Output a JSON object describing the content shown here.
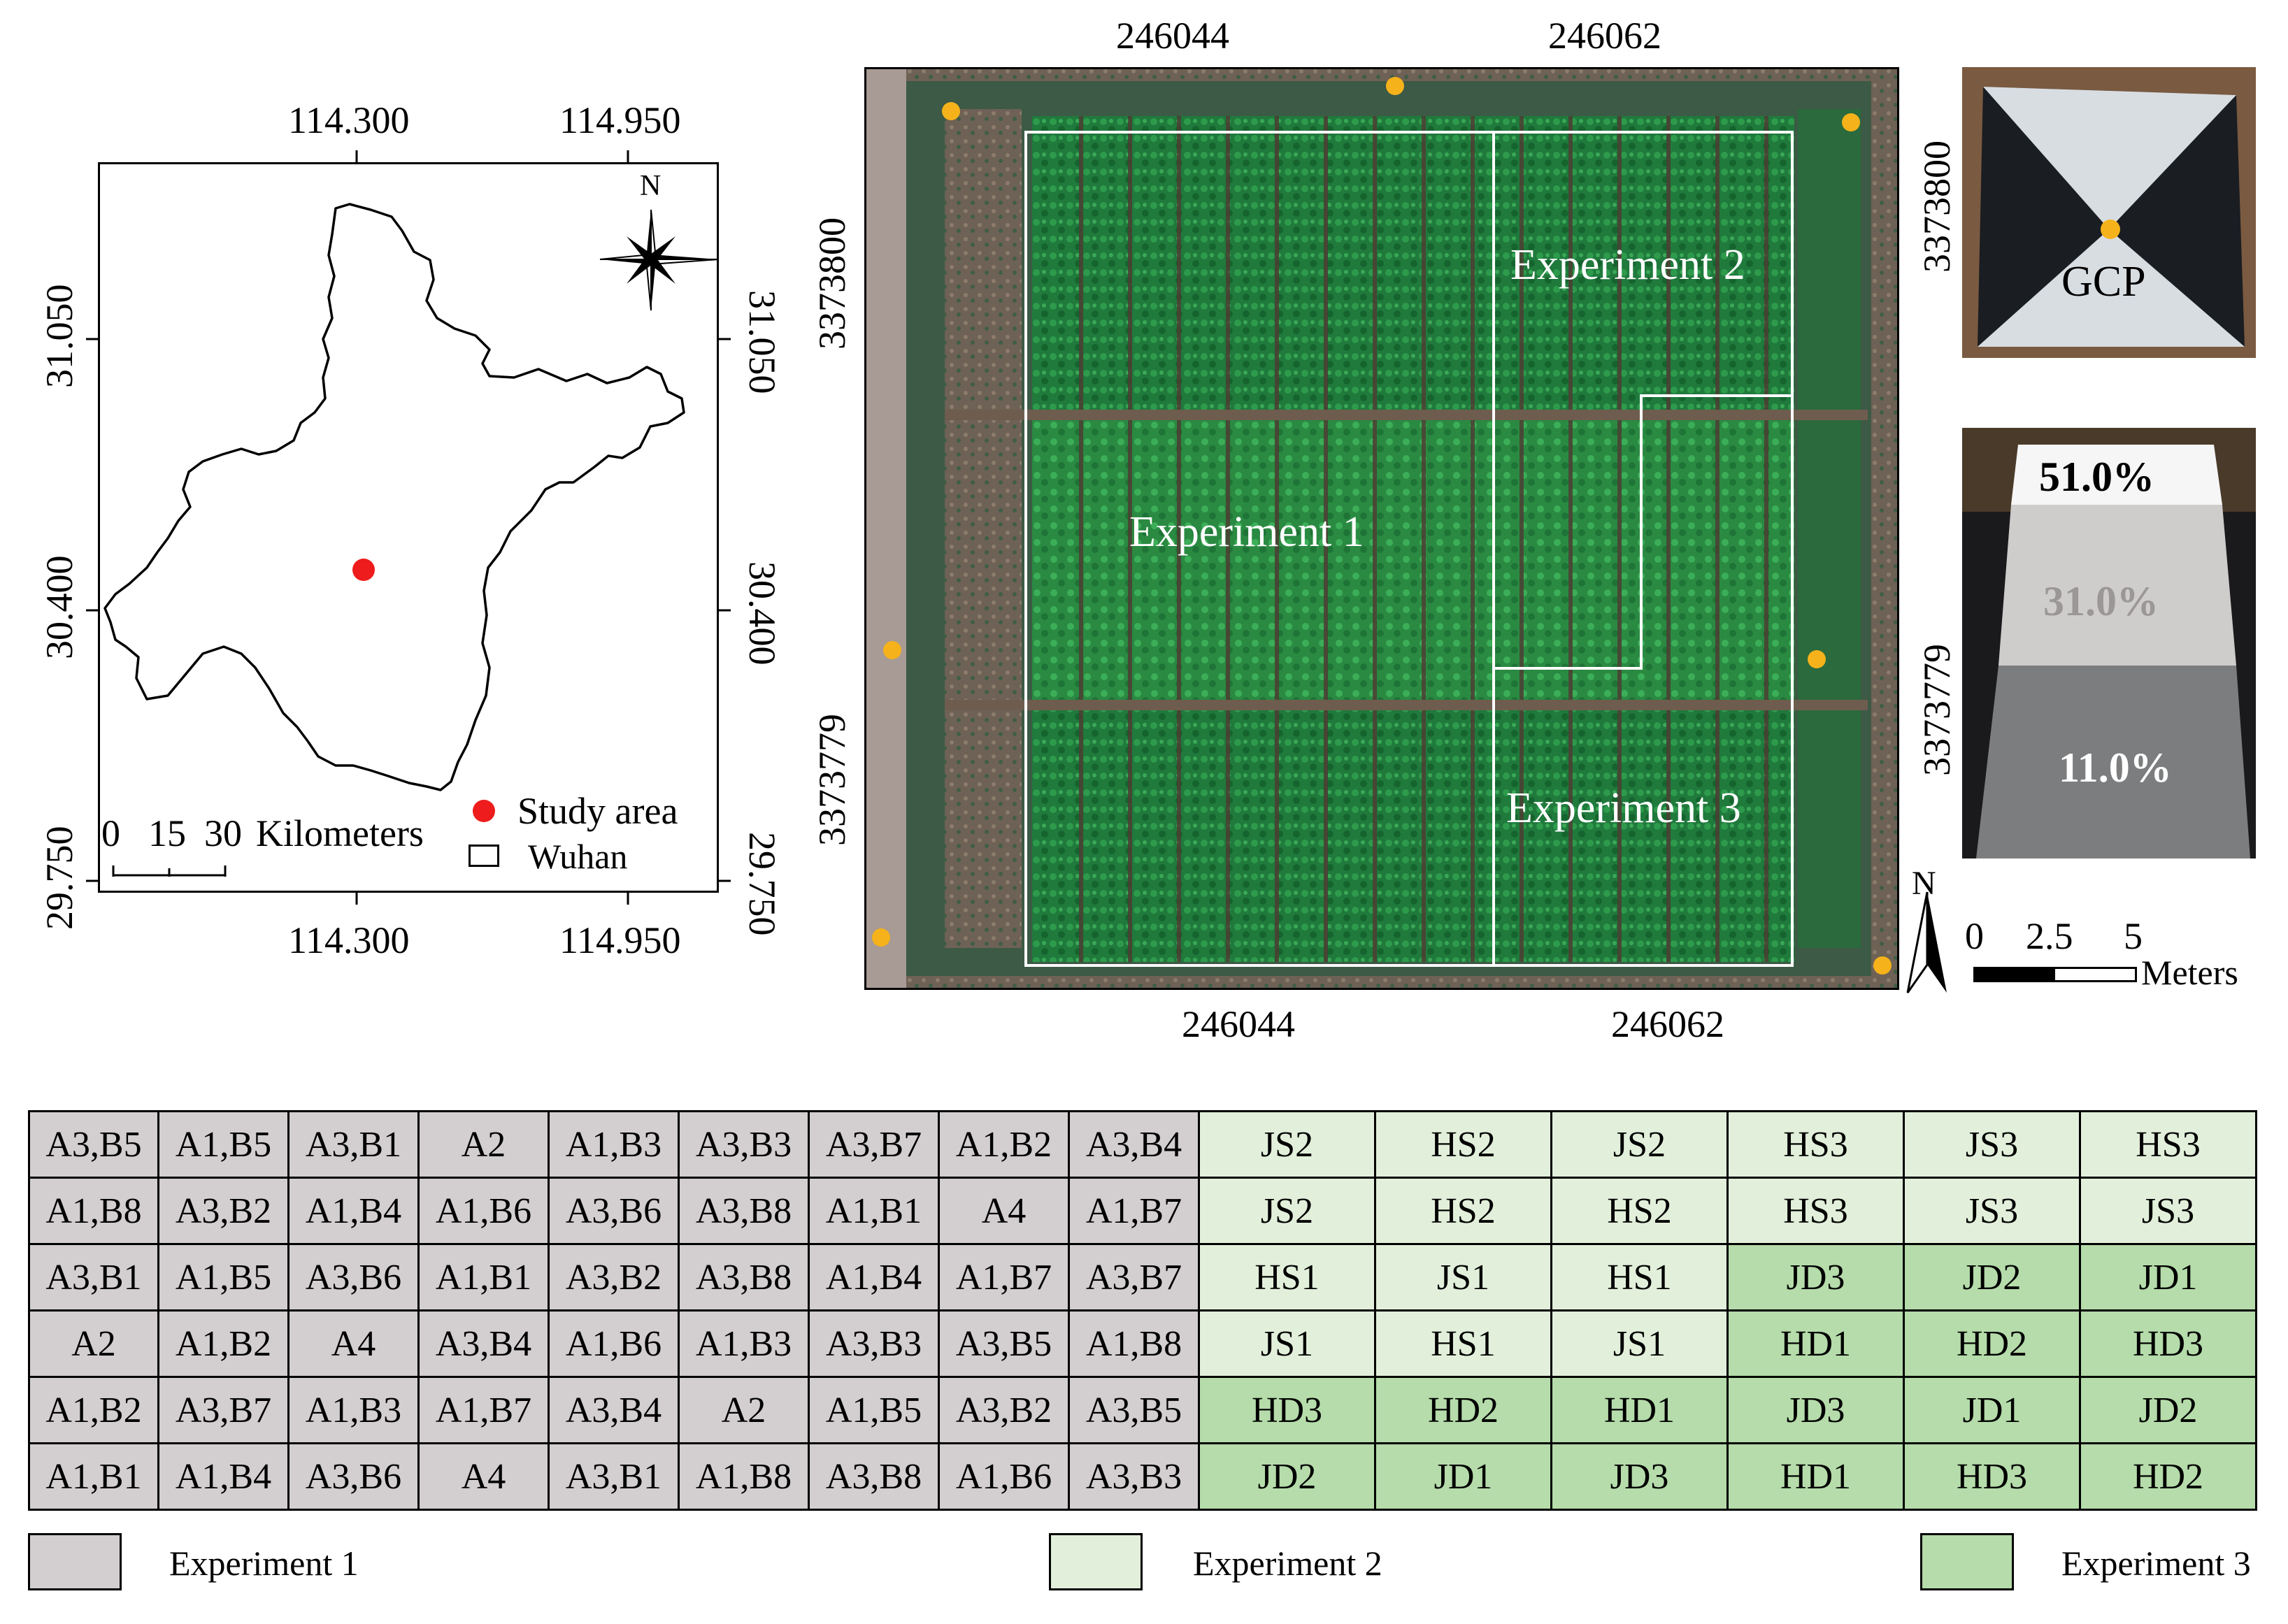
{
  "left_map": {
    "top_ticks": [
      "114.300",
      "114.950"
    ],
    "bottom_ticks": [
      "114.300",
      "114.950"
    ],
    "left_ticks": [
      "31.050",
      "30.400",
      "29.750"
    ],
    "right_ticks": [
      "31.050",
      "30.400",
      "29.750"
    ],
    "north_label": "N",
    "scale_labels": [
      "0",
      "15",
      "30"
    ],
    "scale_unit": "Kilometers",
    "legend": {
      "study_area": "Study area",
      "wuhan": "Wuhan"
    },
    "colors": {
      "study_area": "#ee1c1c"
    }
  },
  "aerial_map": {
    "top_ticks": [
      "246044",
      "246062"
    ],
    "bottom_ticks": [
      "246044",
      "246062"
    ],
    "left_ticks": [
      "3373800",
      "3373779"
    ],
    "right_ticks": [
      "3373800",
      "3373779"
    ],
    "experiments": [
      "Experiment 1",
      "Experiment 2",
      "Experiment 3"
    ],
    "north_label": "N",
    "scale_labels": [
      "0",
      "2.5",
      "5"
    ],
    "scale_unit": "Meters",
    "colors": {
      "gcp_marker": "#f5b21a",
      "vegetation": "#1d7a3a",
      "soil": "#7a6a5a"
    }
  },
  "gcp_panel": {
    "label": "GCP"
  },
  "reflectance_panel": {
    "labels": [
      "51.0%",
      "31.0%",
      "11.0%"
    ]
  },
  "plot_table": {
    "experiment1": [
      [
        "A3,B5",
        "A1,B5",
        "A3,B1",
        "A2",
        "A1,B3",
        "A3,B3",
        "A3,B7",
        "A1,B2",
        "A3,B4"
      ],
      [
        "A1,B8",
        "A3,B2",
        "A1,B4",
        "A1,B6",
        "A3,B6",
        "A3,B8",
        "A1,B1",
        "A4",
        "A1,B7"
      ],
      [
        "A3,B1",
        "A1,B5",
        "A3,B6",
        "A1,B1",
        "A3,B2",
        "A3,B8",
        "A1,B4",
        "A1,B7",
        "A3,B7"
      ],
      [
        "A2",
        "A1,B2",
        "A4",
        "A3,B4",
        "A1,B6",
        "A1,B3",
        "A3,B3",
        "A3,B5",
        "A1,B8"
      ],
      [
        "A1,B2",
        "A3,B7",
        "A1,B3",
        "A1,B7",
        "A3,B4",
        "A2",
        "A1,B5",
        "A3,B2",
        "A3,B5"
      ],
      [
        "A1,B1",
        "A1,B4",
        "A3,B6",
        "A4",
        "A3,B1",
        "A1,B8",
        "A3,B8",
        "A1,B6",
        "A3,B3"
      ]
    ],
    "experiment23": [
      [
        {
          "t": "JS2",
          "e": 2
        },
        {
          "t": "HS2",
          "e": 2
        },
        {
          "t": "JS2",
          "e": 2
        },
        {
          "t": "HS3",
          "e": 2
        },
        {
          "t": "JS3",
          "e": 2
        },
        {
          "t": "HS3",
          "e": 2
        }
      ],
      [
        {
          "t": "JS2",
          "e": 2
        },
        {
          "t": "HS2",
          "e": 2
        },
        {
          "t": "HS2",
          "e": 2
        },
        {
          "t": "HS3",
          "e": 2
        },
        {
          "t": "JS3",
          "e": 2
        },
        {
          "t": "JS3",
          "e": 2
        }
      ],
      [
        {
          "t": "HS1",
          "e": 2
        },
        {
          "t": "JS1",
          "e": 2
        },
        {
          "t": "HS1",
          "e": 2
        },
        {
          "t": "JD3",
          "e": 3
        },
        {
          "t": "JD2",
          "e": 3
        },
        {
          "t": "JD1",
          "e": 3
        }
      ],
      [
        {
          "t": "JS1",
          "e": 2
        },
        {
          "t": "HS1",
          "e": 2
        },
        {
          "t": "JS1",
          "e": 2
        },
        {
          "t": "HD1",
          "e": 3
        },
        {
          "t": "HD2",
          "e": 3
        },
        {
          "t": "HD3",
          "e": 3
        }
      ],
      [
        {
          "t": "HD3",
          "e": 3
        },
        {
          "t": "HD2",
          "e": 3
        },
        {
          "t": "HD1",
          "e": 3
        },
        {
          "t": "JD3",
          "e": 3
        },
        {
          "t": "JD1",
          "e": 3
        },
        {
          "t": "JD2",
          "e": 3
        }
      ],
      [
        {
          "t": "JD2",
          "e": 3
        },
        {
          "t": "JD1",
          "e": 3
        },
        {
          "t": "JD3",
          "e": 3
        },
        {
          "t": "HD1",
          "e": 3
        },
        {
          "t": "HD3",
          "e": 3
        },
        {
          "t": "HD2",
          "e": 3
        }
      ]
    ],
    "colors": {
      "experiment1": "#d3cfd1",
      "experiment2": "#e2f0db",
      "experiment3": "#b5dcaa"
    }
  },
  "legend": [
    "Experiment 1",
    "Experiment 2",
    "Experiment 3"
  ]
}
